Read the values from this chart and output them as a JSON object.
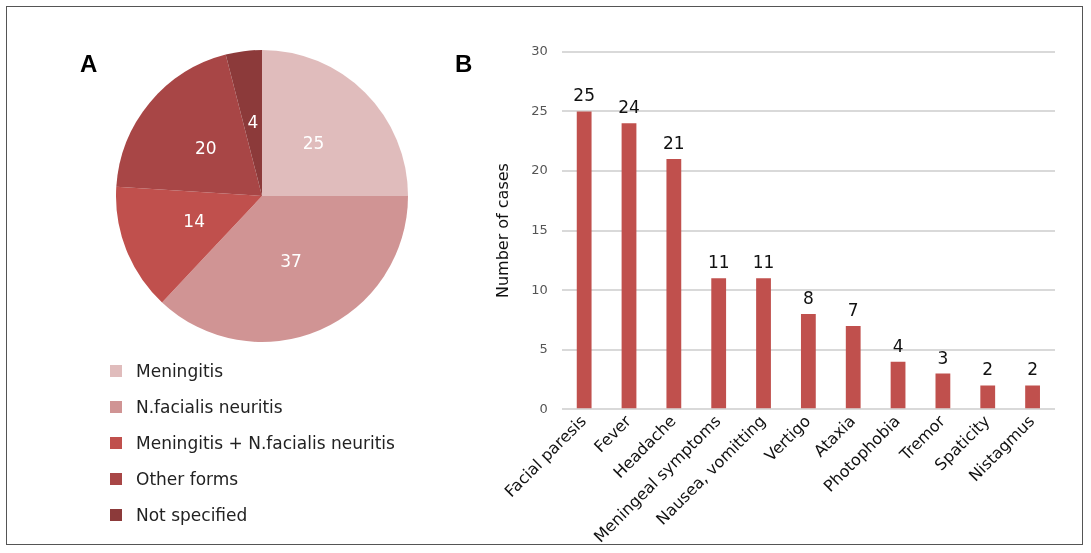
{
  "chart_data": [
    {
      "type": "pie",
      "title": "A",
      "categories": [
        "Meningitis",
        "N.facialis neuritis",
        "Meningitis + N.facialis neuritis",
        "Other forms",
        "Not specified"
      ],
      "values": [
        25,
        37,
        14,
        20,
        4
      ],
      "colors": [
        "#e0bcbc",
        "#d09494",
        "#c0504d",
        "#a84646",
        "#8c3a3a"
      ],
      "data_labels": true,
      "legend": "bottom"
    },
    {
      "type": "bar",
      "title": "B",
      "ylabel": "Number of cases",
      "categories": [
        "Facial paresis",
        "Fever",
        "Headache",
        "Meningeal symptoms",
        "Nausea, vomitting",
        "Vertigo",
        "Ataxia",
        "Photophobia",
        "Tremor",
        "Spaticity",
        "Nistagmus"
      ],
      "values": [
        25,
        24,
        21,
        11,
        11,
        8,
        7,
        4,
        3,
        2,
        2
      ],
      "color": "#c0504d",
      "ylim": [
        0,
        30
      ],
      "yticks": [
        0,
        5,
        10,
        15,
        20,
        25,
        30
      ],
      "grid": "y",
      "data_labels": true,
      "legend": false
    }
  ]
}
